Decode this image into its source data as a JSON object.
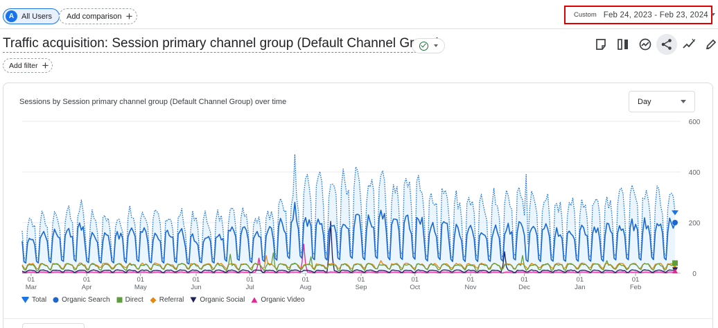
{
  "header": {
    "segment": {
      "avatar": "A",
      "label": "All Users"
    },
    "add_comparison_label": "Add comparison",
    "date_range": {
      "preset": "Custom",
      "range": "Feb 24, 2023 - Feb 23, 2024"
    }
  },
  "report": {
    "title": "Traffic acquisition: Session primary channel group (Default Channel Group)",
    "add_filter_label": "Add filter"
  },
  "toolbar": {
    "icons": [
      "notes-icon",
      "compare-columns-icon",
      "insights-icon",
      "share-icon",
      "trend-icon",
      "edit-icon"
    ]
  },
  "card": {
    "chart_title": "Sessions by Session primary channel group (Default Channel Group) over time",
    "granularity": "Day"
  },
  "colors": {
    "total": "#1a73e8",
    "organic_search": "#1967d2",
    "direct": "#5e9e3a",
    "referral": "#e8870e",
    "organic_social": "#1f1f5e",
    "organic_video": "#e52592",
    "total_fill": "#e3f2fd",
    "grid": "#e8eaed",
    "highlight": "#e00000"
  },
  "chart_data": {
    "type": "line",
    "title": "Sessions by Session primary channel group (Default Channel Group) over time",
    "granularity": "Day",
    "y_axis": {
      "side": "right",
      "ylim": [
        0,
        600
      ],
      "ticks": [
        0,
        200,
        400,
        600
      ]
    },
    "x_axis": {
      "start": "2023-02-24",
      "end": "2024-02-23",
      "ticks": [
        {
          "date": "2023-03-01",
          "day": "01",
          "month": "Mar"
        },
        {
          "date": "2023-04-01",
          "day": "01",
          "month": "Apr"
        },
        {
          "date": "2023-05-01",
          "day": "01",
          "month": "May"
        },
        {
          "date": "2023-06-01",
          "day": "01",
          "month": "Jun"
        },
        {
          "date": "2023-07-01",
          "day": "01",
          "month": "Jul"
        },
        {
          "date": "2023-08-01",
          "day": "01",
          "month": "Aug"
        },
        {
          "date": "2023-09-01",
          "day": "01",
          "month": "Sep"
        },
        {
          "date": "2023-10-01",
          "day": "01",
          "month": "Oct"
        },
        {
          "date": "2023-11-01",
          "day": "01",
          "month": "Nov"
        },
        {
          "date": "2023-12-01",
          "day": "01",
          "month": "Dec"
        },
        {
          "date": "2024-01-01",
          "day": "01",
          "month": "Jan"
        },
        {
          "date": "2024-02-01",
          "day": "01",
          "month": "Feb"
        }
      ]
    },
    "grid": true,
    "legend_position": "bottom-left",
    "series": [
      {
        "name": "Total",
        "key": "total",
        "style": "dotted-area",
        "marker": "pin",
        "weekly_peak": [
          220,
          230,
          240,
          250,
          270,
          235,
          230,
          225,
          240,
          245,
          230,
          235,
          240,
          220,
          225,
          230,
          250,
          260,
          235,
          250,
          280,
          340,
          370,
          380,
          350,
          380,
          395,
          360,
          420,
          360,
          365,
          380,
          330,
          350,
          300,
          300,
          290,
          300,
          305,
          330,
          300,
          310,
          280,
          290,
          295,
          300,
          305,
          315,
          320,
          330,
          330,
          330,
          325,
          350,
          360,
          360,
          380,
          320,
          330,
          340,
          335,
          330,
          340,
          340,
          360,
          320,
          335,
          330,
          360,
          330,
          325,
          320,
          325,
          320
        ],
        "weekly_trough": [
          45,
          45,
          45,
          50,
          50,
          45,
          45,
          45,
          45,
          50,
          45,
          45,
          45,
          40,
          45,
          45,
          50,
          55,
          45,
          50,
          55,
          60,
          60,
          55,
          55,
          55,
          60,
          55,
          60,
          55,
          55,
          55,
          50,
          55,
          50,
          50,
          50,
          50,
          50,
          55,
          50,
          50,
          50,
          50,
          50,
          50,
          50,
          55,
          55,
          55,
          55,
          55,
          55,
          60,
          60,
          60,
          60,
          55,
          55,
          55,
          55,
          55,
          55,
          55,
          60,
          55,
          55,
          55,
          60,
          55,
          55,
          55,
          55,
          55
        ],
        "spikes": [
          {
            "date": "2023-07-26",
            "value": 470
          },
          {
            "date": "2023-12-02",
            "value": 390
          }
        ],
        "last_value": 240
      },
      {
        "name": "Organic Search",
        "key": "organic_search",
        "style": "solid",
        "marker": "circle",
        "weekly_peak": [
          150,
          160,
          165,
          170,
          190,
          165,
          160,
          155,
          170,
          175,
          160,
          165,
          170,
          150,
          155,
          160,
          175,
          180,
          165,
          175,
          195,
          210,
          215,
          220,
          205,
          215,
          225,
          210,
          240,
          210,
          215,
          225,
          195,
          205,
          180,
          180,
          175,
          180,
          185,
          200,
          180,
          185,
          170,
          175,
          180,
          180,
          185,
          190,
          195,
          205,
          205,
          205,
          200,
          215,
          225,
          225,
          235,
          200,
          205,
          210,
          210,
          205,
          210,
          210,
          225,
          200,
          210,
          205,
          225,
          205,
          200,
          200,
          205,
          200
        ],
        "weekly_trough": [
          35,
          35,
          35,
          40,
          40,
          35,
          35,
          35,
          35,
          40,
          35,
          35,
          35,
          30,
          35,
          35,
          40,
          45,
          35,
          40,
          45,
          50,
          50,
          45,
          45,
          45,
          50,
          45,
          50,
          45,
          45,
          45,
          40,
          45,
          40,
          40,
          40,
          40,
          40,
          45,
          40,
          40,
          40,
          40,
          40,
          40,
          40,
          45,
          45,
          45,
          45,
          45,
          45,
          50,
          50,
          50,
          50,
          45,
          45,
          45,
          45,
          45,
          45,
          45,
          50,
          45,
          45,
          45,
          50,
          45,
          45,
          45,
          45,
          45
        ],
        "spikes": [
          {
            "date": "2023-07-26",
            "value": 280
          }
        ],
        "last_value": 200
      },
      {
        "name": "Direct",
        "key": "direct",
        "style": "solid",
        "marker": "square",
        "base": 24,
        "amplitude": 14,
        "spikes": [
          {
            "date": "2023-06-20",
            "value": 75
          },
          {
            "date": "2023-07-14",
            "value": 80
          },
          {
            "date": "2023-08-04",
            "value": 65
          },
          {
            "date": "2023-11-30",
            "value": 70
          },
          {
            "date": "2024-01-16",
            "value": 50
          }
        ],
        "last_value": 40
      },
      {
        "name": "Referral",
        "key": "referral",
        "style": "solid",
        "marker": "diamond",
        "base": 28,
        "amplitude": 12,
        "spikes": [
          {
            "date": "2023-07-10",
            "value": 70
          },
          {
            "date": "2023-09-12",
            "value": 50
          }
        ],
        "last_value": 20
      },
      {
        "name": "Organic Social",
        "key": "organic_social",
        "style": "solid",
        "marker": "triangle-down",
        "base": 8,
        "amplitude": 5,
        "spikes": [
          {
            "date": "2023-08-15",
            "value": 205
          },
          {
            "date": "2023-11-20",
            "value": 85
          }
        ],
        "last_value": 15
      },
      {
        "name": "Organic Video",
        "key": "organic_video",
        "style": "solid",
        "marker": "triangle-up",
        "base": 3,
        "amplitude": 2,
        "spikes": [
          {
            "date": "2023-07-06",
            "value": 60
          },
          {
            "date": "2023-07-31",
            "value": 115
          }
        ],
        "last_value": 8
      }
    ]
  }
}
